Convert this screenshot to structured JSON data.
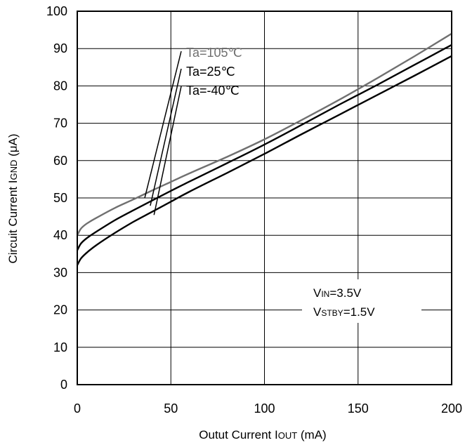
{
  "chart_data": {
    "type": "line",
    "title": "",
    "xlabel": "Outut Current IOUT (mA)",
    "xlabel_parts": {
      "main": "Outut Current I",
      "sub": "OUT",
      "unit": " (mA)"
    },
    "ylabel": "Circuit Current IGND (μA)",
    "ylabel_parts": {
      "main": "Circuit Current I",
      "sub": "GND",
      "unit": " (μA)"
    },
    "xlim": [
      0,
      200
    ],
    "ylim": [
      0,
      100
    ],
    "x_ticks": [
      0,
      50,
      100,
      150,
      200
    ],
    "y_ticks": [
      0,
      10,
      20,
      30,
      40,
      50,
      60,
      70,
      80,
      90,
      100
    ],
    "grid": true,
    "legend_placement": "top-left, labels with leader lines to curves",
    "series": [
      {
        "name": "Ta=105℃",
        "color": "#707070",
        "x": [
          0,
          2,
          5,
          10,
          20,
          30,
          40,
          50,
          60,
          80,
          100,
          120,
          140,
          160,
          180,
          200
        ],
        "y": [
          40,
          41.8,
          43.1,
          44.6,
          47.3,
          49.6,
          52.0,
          54.3,
          56.6,
          61.0,
          65.7,
          70.9,
          76.3,
          82.0,
          87.9,
          94.0
        ]
      },
      {
        "name": "Ta=25℃",
        "color": "#000000",
        "x": [
          0,
          2,
          5,
          10,
          20,
          30,
          40,
          50,
          60,
          80,
          100,
          120,
          140,
          160,
          180,
          200
        ],
        "y": [
          36,
          37.8,
          39.2,
          40.9,
          44.0,
          46.7,
          49.3,
          51.9,
          54.4,
          59.3,
          64.3,
          69.6,
          75.0,
          80.2,
          85.6,
          91.0
        ]
      },
      {
        "name": "Ta=-40℃",
        "color": "#000000",
        "x": [
          0,
          2,
          5,
          10,
          20,
          30,
          40,
          50,
          60,
          80,
          100,
          120,
          140,
          160,
          180,
          200
        ],
        "y": [
          32,
          33.8,
          35.3,
          37.3,
          40.6,
          43.6,
          46.3,
          49.0,
          51.7,
          56.7,
          61.8,
          67.1,
          72.3,
          77.5,
          82.7,
          88.0
        ]
      }
    ],
    "conditions": [
      {
        "main": "V",
        "sub": "IN",
        "value": "=3.5V"
      },
      {
        "main": "V",
        "sub": "STBY",
        "value": "=1.5V"
      }
    ]
  }
}
